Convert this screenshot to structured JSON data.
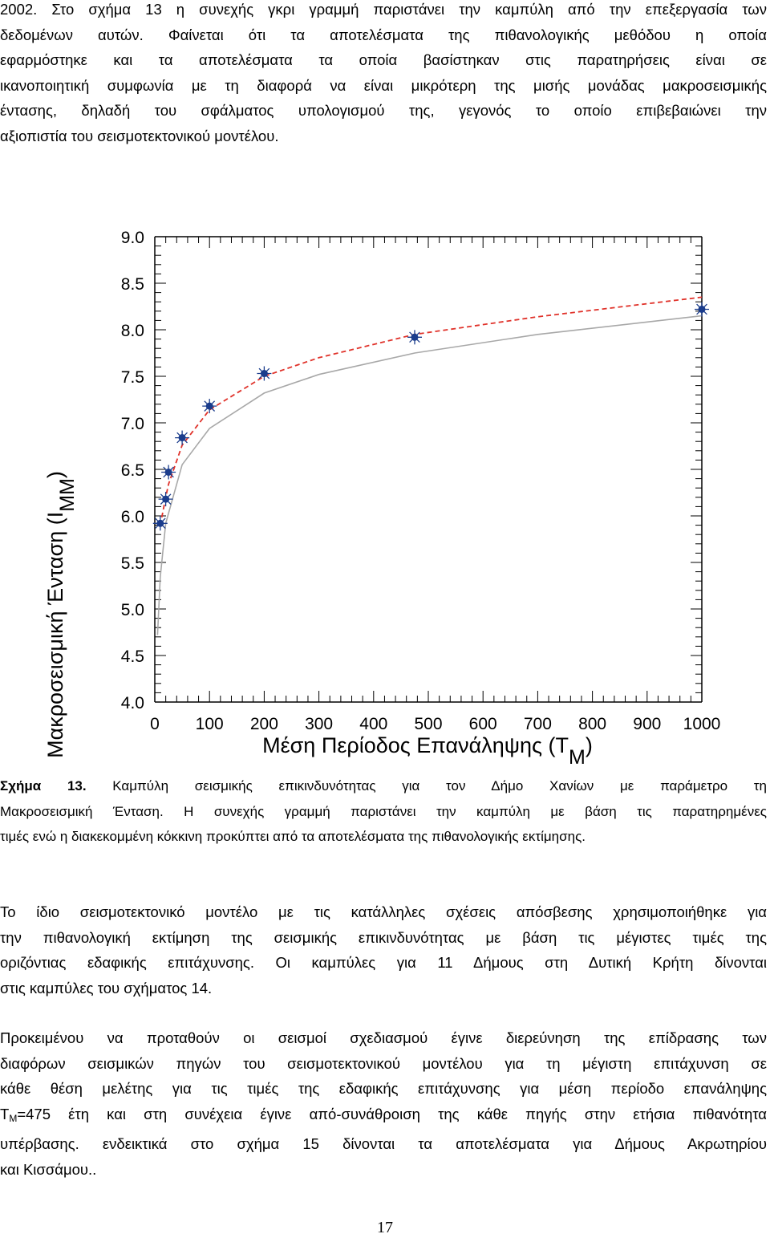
{
  "paragraph1": {
    "lines": [
      "2002. Στο σχήμα 13 η συνεχής γκρι γραμμή παριστάνει την καμπύλη από την επεξεργασία των",
      "δεδομένων αυτών. Φαίνεται ότι τα αποτελέσματα της πιθανολογικής μεθόδου η οποία",
      "εφαρμόστηκε και τα αποτελέσματα τα οποία βασίστηκαν στις παρατηρήσεις είναι σε",
      "ικανοποιητική συμφωνία με τη διαφορά να είναι μικρότερη της μισής μονάδας μακροσεισμικής",
      "έντασης, δηλαδή του σφάλματος υπολογισμού της, γεγονός το οποίο  επιβεβαιώνει την",
      "αξιοπιστία του σεισμοτεκτονικού μοντέλου."
    ]
  },
  "chart_data": {
    "type": "scatter",
    "xlabel": "Μέση Περίοδος Επανάληψης (T",
    "xlabel_subscript": "M",
    "xlabel_close": ")",
    "ylabel": "Μακροσεισμική Ένταση (I",
    "ylabel_subscript": "MM",
    "ylabel_close": ")",
    "xlim": [
      0,
      1000
    ],
    "ylim": [
      4.0,
      9.0
    ],
    "x_ticks": [
      "0",
      "100",
      "200",
      "300",
      "400",
      "500",
      "600",
      "700",
      "800",
      "900",
      "1000"
    ],
    "y_ticks": [
      "4.0",
      "4.5",
      "5.0",
      "5.5",
      "6.0",
      "6.5",
      "7.0",
      "7.5",
      "8.0",
      "8.5",
      "9.0"
    ],
    "grid": false,
    "series": [
      {
        "style": "markers",
        "color": "#1a3c8c",
        "x": [
          10,
          20,
          25,
          50,
          100,
          200,
          475,
          1000
        ],
        "y": [
          5.92,
          6.18,
          6.47,
          6.84,
          7.18,
          7.53,
          7.92,
          8.22
        ]
      },
      {
        "style": "dashed",
        "color": "#e0322a",
        "x": [
          10,
          20,
          25,
          50,
          100,
          200,
          300,
          475,
          700,
          1000
        ],
        "y": [
          5.9,
          6.2,
          6.34,
          6.76,
          7.14,
          7.5,
          7.7,
          7.95,
          8.14,
          8.35
        ]
      },
      {
        "style": "solid",
        "color": "#a8a8a8",
        "x": [
          5,
          10,
          20,
          50,
          100,
          200,
          300,
          475,
          700,
          1000
        ],
        "y": [
          4.72,
          5.34,
          5.92,
          6.55,
          6.94,
          7.32,
          7.52,
          7.75,
          7.95,
          8.15
        ]
      }
    ]
  },
  "caption": {
    "label": "Σχήμα 13.",
    "line1_rest": "Καμπύλη σεισμικής επικινδυνότητας για τον Δήμο Χανίων με παράμετρο τη",
    "lines": [
      "Μακροσεισμική Ένταση. Η συνεχής γραμμή παριστάνει την καμπύλη με βάση τις παρατηρημένες",
      "τιμές ενώ η διακεκομμένη κόκκινη προκύπτει από τα αποτελέσματα της πιθανολογικής εκτίμησης."
    ]
  },
  "paragraph2": {
    "lines": [
      "Το ίδιο σεισμοτεκτονικό μοντέλο με τις κατάλληλες σχέσεις απόσβεσης χρησιμοποιήθηκε για",
      "την πιθανολογική εκτίμηση της σεισμικής επικινδυνότητας με βάση τις μέγιστες τιμές της",
      "οριζόντιας εδαφικής επιτάχυνσης. Οι καμπύλες για 11 Δήμους στη Δυτική Κρήτη δίνονται",
      "στις καμπύλες του σχήματος 14."
    ]
  },
  "paragraph3": {
    "lines": [
      "Προκειμένου να προταθούν οι σεισμοί σχεδιασμού έγινε διερεύνηση της επίδρασης των",
      "διαφόρων σεισμικών πηγών του σεισμοτεκτονικού  μοντέλου για τη μέγιστη επιτάχυνση σε",
      "κάθε θέση μελέτης για τις τιμές της εδαφικής επιτάχυνσης για μέση περίοδο επανάληψης"
    ],
    "line4_pre": "T",
    "line4_sub": "M",
    "line4_post": "=475 έτη και στη συνέχεια έγινε από-συνάθροιση της κάθε πηγής στην ετήσια πιθανότητα",
    "lines_after": [
      "υπέρβασης. ενδεικτικά στο σχήμα 15 δίνονται τα αποτελέσματα για Δήμους Ακρωτηρίου",
      "και Κισσάμου.."
    ]
  },
  "page_number": "17"
}
